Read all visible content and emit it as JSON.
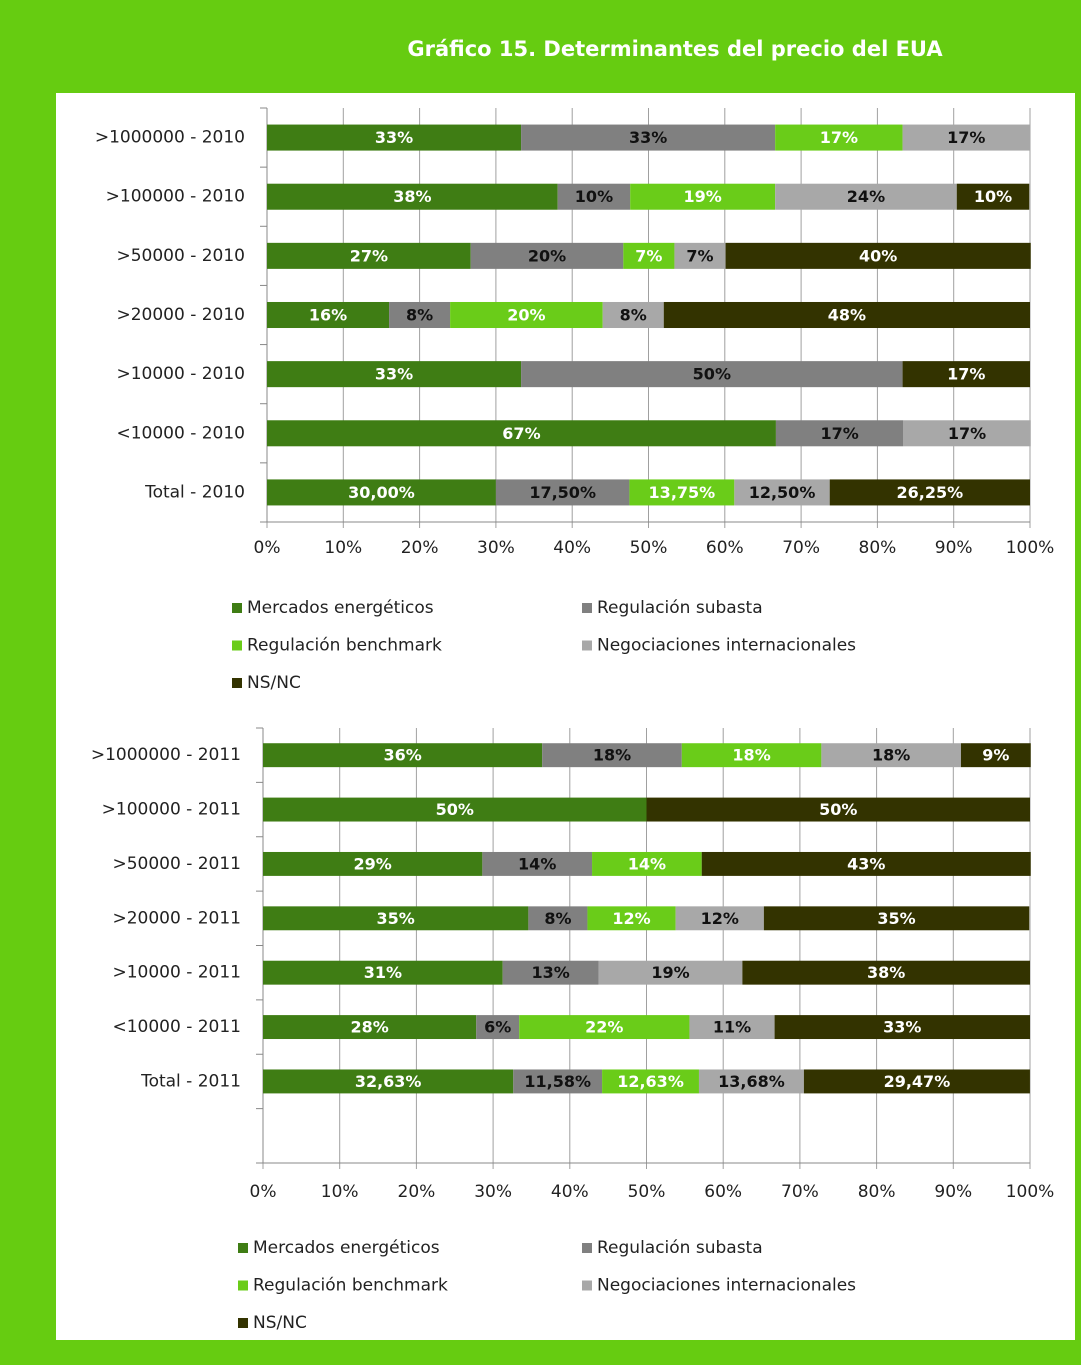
{
  "title": "Gráfico 15.  Determinantes del precio del EUA",
  "chart_data": [
    {
      "type": "bar",
      "orientation": "horizontal",
      "stacked": true,
      "grid": true,
      "legend": "bottom",
      "categories": [
        ">1000000 - 2010",
        ">100000 - 2010",
        ">50000 - 2010",
        ">20000 - 2010",
        ">10000 - 2010",
        "<10000 - 2010",
        "Total - 2010"
      ],
      "xlim": [
        0,
        100
      ],
      "xticks": [
        {
          "value": 0,
          "label": "0%"
        },
        {
          "value": 10,
          "label": "10%"
        },
        {
          "value": 20,
          "label": "20%"
        },
        {
          "value": 30,
          "label": "30%"
        },
        {
          "value": 40,
          "label": "40%"
        },
        {
          "value": 50,
          "label": "50%"
        },
        {
          "value": 60,
          "label": "60%"
        },
        {
          "value": 70,
          "label": "70%"
        },
        {
          "value": 80,
          "label": "80%"
        },
        {
          "value": 90,
          "label": "90%"
        },
        {
          "value": 100,
          "label": "100%"
        }
      ],
      "series": [
        {
          "name": "Mercados energéticos",
          "color": "#3f7d14",
          "values": [
            33.3,
            38.1,
            26.7,
            16,
            33.3,
            66.7,
            30
          ],
          "value_labels": [
            "33%",
            "38%",
            "27%",
            "16%",
            "33%",
            "67%",
            "30,00%"
          ]
        },
        {
          "name": "Regulación subasta",
          "color": "#808080",
          "values": [
            33.3,
            9.5,
            20,
            8,
            50,
            16.7,
            17.5
          ],
          "value_labels": [
            "33%",
            "10%",
            "20%",
            "8%",
            "50%",
            "17%",
            "17,50%"
          ]
        },
        {
          "name": "Regulación benchmark",
          "color": "#6acc19",
          "values": [
            16.7,
            19,
            6.7,
            20,
            null,
            null,
            13.75
          ],
          "value_labels": [
            "17%",
            "19%",
            "7%",
            "20%",
            null,
            null,
            "13,75%"
          ]
        },
        {
          "name": "Negociaciones internacionales",
          "color": "#a8a8a8",
          "values": [
            16.7,
            23.8,
            6.7,
            8,
            null,
            16.7,
            12.5
          ],
          "value_labels": [
            "17%",
            "24%",
            "7%",
            "8%",
            null,
            "17%",
            "12,50%"
          ]
        },
        {
          "name": "NS/NC",
          "color": "#333300",
          "values": [
            null,
            9.5,
            40,
            48,
            16.7,
            null,
            26.25
          ],
          "value_labels": [
            null,
            "10%",
            "40%",
            "48%",
            "17%",
            null,
            "26,25%"
          ]
        }
      ]
    },
    {
      "type": "bar",
      "orientation": "horizontal",
      "stacked": true,
      "grid": true,
      "legend": "bottom",
      "categories": [
        ">1000000 - 2011",
        ">100000 - 2011",
        ">50000 - 2011",
        ">20000 - 2011",
        ">10000 - 2011",
        "<10000 - 2011",
        "Total - 2011",
        null
      ],
      "xlim": [
        0,
        100
      ],
      "xticks": [
        {
          "value": 0,
          "label": "0%"
        },
        {
          "value": 10,
          "label": "10%"
        },
        {
          "value": 20,
          "label": "20%"
        },
        {
          "value": 30,
          "label": "30%"
        },
        {
          "value": 40,
          "label": "40%"
        },
        {
          "value": 50,
          "label": "50%"
        },
        {
          "value": 60,
          "label": "60%"
        },
        {
          "value": 70,
          "label": "70%"
        },
        {
          "value": 80,
          "label": "80%"
        },
        {
          "value": 90,
          "label": "90%"
        },
        {
          "value": 100,
          "label": "100%"
        }
      ],
      "series": [
        {
          "name": "Mercados energéticos",
          "color": "#3f7d14",
          "values": [
            36.4,
            50,
            28.6,
            34.6,
            31.25,
            27.8,
            32.63,
            null
          ],
          "value_labels": [
            "36%",
            "50%",
            "29%",
            "35%",
            "31%",
            "28%",
            "32,63%",
            null
          ]
        },
        {
          "name": "Regulación subasta",
          "color": "#808080",
          "values": [
            18.2,
            null,
            14.3,
            7.7,
            12.5,
            5.6,
            11.58,
            null
          ],
          "value_labels": [
            "18%",
            null,
            "14%",
            "8%",
            "13%",
            "6%",
            "11,58%",
            null
          ]
        },
        {
          "name": "Regulación benchmark",
          "color": "#6acc19",
          "values": [
            18.2,
            null,
            14.3,
            11.5,
            null,
            22.2,
            12.63,
            null
          ],
          "value_labels": [
            "18%",
            null,
            "14%",
            "12%",
            null,
            "22%",
            "12,63%",
            null
          ]
        },
        {
          "name": "Negociaciones internacionales",
          "color": "#a8a8a8",
          "values": [
            18.2,
            null,
            null,
            11.5,
            18.75,
            11.1,
            13.68,
            null
          ],
          "value_labels": [
            "18%",
            null,
            null,
            "12%",
            "19%",
            "11%",
            "13,68%",
            null
          ]
        },
        {
          "name": "NS/NC",
          "color": "#333300",
          "values": [
            9.1,
            50,
            42.9,
            34.6,
            37.5,
            33.3,
            29.47,
            null
          ],
          "value_labels": [
            "9%",
            "50%",
            "43%",
            "35%",
            "38%",
            "33%",
            "29,47%",
            null
          ]
        }
      ]
    }
  ]
}
